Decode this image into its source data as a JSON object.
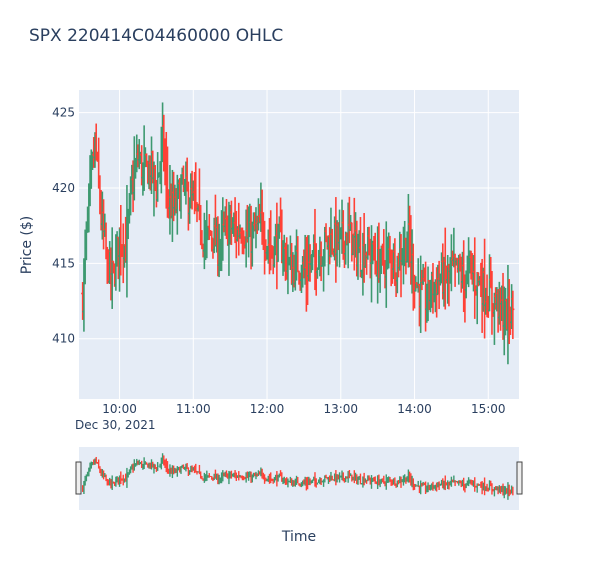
{
  "chart_data": {
    "type": "ohlc",
    "title": "SPX    220414C04460000 OHLC",
    "xlabel": "Time",
    "ylabel": "Price ($)",
    "date_label": "Dec 30, 2021",
    "x_range": [
      "09:30",
      "15:20"
    ],
    "x_ticks": [
      "10:00",
      "11:00",
      "12:00",
      "13:00",
      "14:00",
      "15:00"
    ],
    "y_ticks": [
      "410",
      "415",
      "420",
      "425"
    ],
    "ylim": [
      406,
      426.5
    ],
    "grid": true,
    "rangeslider": true,
    "colors": {
      "increasing": "#3d9970",
      "decreasing": "#ff4136",
      "plot_bg": "#e5ecf6",
      "grid": "#ffffff",
      "text": "#2a3f5f"
    },
    "approx_close_path": [
      [
        "09:30",
        413.0
      ],
      [
        "09:35",
        419.0
      ],
      [
        "09:40",
        423.0
      ],
      [
        "09:45",
        418.0
      ],
      [
        "09:50",
        415.0
      ],
      [
        "09:55",
        414.0
      ],
      [
        "10:00",
        417.0
      ],
      [
        "10:05",
        416.0
      ],
      [
        "10:10",
        420.0
      ],
      [
        "10:15",
        422.0
      ],
      [
        "10:20",
        421.0
      ],
      [
        "10:25",
        421.5
      ],
      [
        "10:30",
        420.0
      ],
      [
        "10:35",
        423.0
      ],
      [
        "10:40",
        419.0
      ],
      [
        "10:45",
        418.5
      ],
      [
        "10:50",
        420.0
      ],
      [
        "10:55",
        419.5
      ],
      [
        "11:00",
        419.0
      ],
      [
        "11:05",
        417.5
      ],
      [
        "11:10",
        416.5
      ],
      [
        "11:15",
        417.0
      ],
      [
        "11:20",
        416.0
      ],
      [
        "11:25",
        417.0
      ],
      [
        "11:30",
        417.5
      ],
      [
        "11:35",
        417.0
      ],
      [
        "11:40",
        417.5
      ],
      [
        "11:45",
        416.5
      ],
      [
        "11:50",
        417.0
      ],
      [
        "11:55",
        417.5
      ],
      [
        "12:00",
        416.5
      ],
      [
        "12:05",
        416.0
      ],
      [
        "12:10",
        416.5
      ],
      [
        "12:15",
        415.5
      ],
      [
        "12:20",
        414.5
      ],
      [
        "12:25",
        415.0
      ],
      [
        "12:30",
        414.5
      ],
      [
        "12:35",
        415.0
      ],
      [
        "12:40",
        415.5
      ],
      [
        "12:45",
        416.0
      ],
      [
        "12:50",
        416.5
      ],
      [
        "12:55",
        416.5
      ],
      [
        "13:00",
        416.5
      ],
      [
        "13:05",
        417.0
      ],
      [
        "13:10",
        416.5
      ],
      [
        "13:15",
        415.5
      ],
      [
        "13:20",
        416.0
      ],
      [
        "13:25",
        415.5
      ],
      [
        "13:30",
        415.0
      ],
      [
        "13:35",
        415.0
      ],
      [
        "13:40",
        415.5
      ],
      [
        "13:45",
        415.0
      ],
      [
        "13:50",
        416.0
      ],
      [
        "13:55",
        416.5
      ],
      [
        "14:00",
        414.0
      ],
      [
        "14:05",
        413.0
      ],
      [
        "14:10",
        412.5
      ],
      [
        "14:15",
        413.5
      ],
      [
        "14:20",
        414.0
      ],
      [
        "14:25",
        414.0
      ],
      [
        "14:30",
        414.5
      ],
      [
        "14:35",
        414.5
      ],
      [
        "14:40",
        414.0
      ],
      [
        "14:45",
        414.5
      ],
      [
        "14:50",
        414.0
      ],
      [
        "14:55",
        413.5
      ],
      [
        "15:00",
        413.0
      ],
      [
        "15:05",
        412.5
      ],
      [
        "15:10",
        412.0
      ],
      [
        "15:15",
        411.5
      ],
      [
        "15:20",
        412.0
      ]
    ]
  }
}
